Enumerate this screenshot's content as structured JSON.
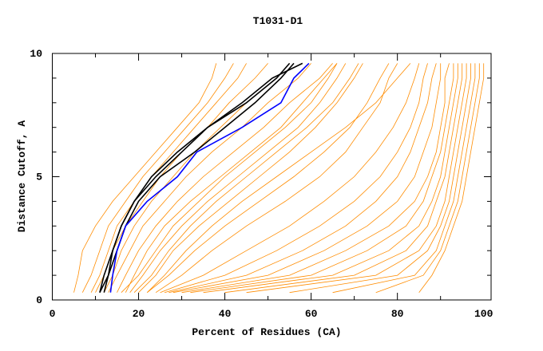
{
  "chart_data": {
    "type": "line",
    "title": "T1031-D1",
    "xlabel": "Percent of Residues (CA)",
    "ylabel": "Distance Cutoff, A",
    "xlim": [
      0,
      100
    ],
    "ylim": [
      0,
      10
    ],
    "xticks": [
      "0",
      "20",
      "40",
      "60",
      "80",
      "100"
    ],
    "yticks": [
      "0",
      "5",
      "10"
    ],
    "grid": false,
    "colors": {
      "others": "#ff8c00",
      "highlight_black": "#000000",
      "highlight_blue": "#0000ff"
    },
    "y": [
      0.3,
      1,
      2,
      3,
      4,
      5,
      6,
      7,
      8,
      9,
      9.6
    ],
    "series_orange": [
      [
        5,
        6,
        7,
        10,
        14,
        19,
        24,
        29,
        34,
        37,
        38
      ],
      [
        7,
        9,
        11,
        13,
        17,
        21,
        26,
        31,
        36,
        40,
        42
      ],
      [
        9,
        11,
        13,
        15,
        19,
        23,
        28,
        33,
        38,
        43,
        45
      ],
      [
        10,
        12,
        14,
        17,
        21,
        25,
        30,
        36,
        41,
        47,
        50
      ],
      [
        12,
        14,
        16,
        19,
        23,
        28,
        33,
        39,
        45,
        52,
        55
      ],
      [
        13,
        15,
        18,
        21,
        26,
        31,
        37,
        44,
        50,
        57,
        60
      ],
      [
        15,
        17,
        20,
        24,
        29,
        35,
        42,
        49,
        55,
        62,
        65
      ],
      [
        17,
        19,
        22,
        26,
        32,
        39,
        46,
        53,
        58,
        63,
        66
      ],
      [
        18,
        21,
        25,
        30,
        36,
        43,
        50,
        57,
        62,
        66,
        68
      ],
      [
        20,
        24,
        28,
        34,
        41,
        48,
        55,
        61,
        66,
        70,
        72
      ],
      [
        22,
        27,
        33,
        40,
        48,
        56,
        63,
        69,
        73,
        76,
        78
      ],
      [
        24,
        30,
        37,
        45,
        54,
        62,
        68,
        72,
        76,
        78,
        80
      ],
      [
        25,
        35,
        45,
        55,
        63,
        70,
        75,
        79,
        82,
        84,
        85
      ],
      [
        26,
        40,
        52,
        62,
        70,
        76,
        80,
        83,
        85,
        86,
        87
      ],
      [
        27,
        45,
        58,
        68,
        75,
        80,
        83,
        85,
        87,
        88,
        89
      ],
      [
        28,
        50,
        63,
        73,
        80,
        84,
        86,
        88,
        89,
        90,
        90
      ],
      [
        30,
        55,
        68,
        78,
        84,
        87,
        89,
        90,
        91,
        91,
        92
      ],
      [
        32,
        60,
        73,
        82,
        86,
        88,
        90,
        91,
        92,
        93,
        93
      ],
      [
        35,
        65,
        78,
        85,
        88,
        90,
        91,
        92,
        93,
        94,
        94
      ],
      [
        40,
        70,
        82,
        87,
        89,
        91,
        92,
        93,
        94,
        95,
        95
      ],
      [
        45,
        75,
        85,
        89,
        91,
        92,
        93,
        94,
        95,
        96,
        96
      ],
      [
        55,
        80,
        87,
        90,
        92,
        93,
        94,
        95,
        96,
        97,
        97
      ],
      [
        65,
        84,
        89,
        91,
        93,
        94,
        95,
        96,
        97,
        98,
        98
      ],
      [
        75,
        86,
        90,
        92,
        94,
        95,
        96,
        97,
        98,
        99,
        99
      ],
      [
        85,
        88,
        91,
        93,
        95,
        96,
        97,
        98,
        99,
        100,
        100
      ],
      [
        22,
        26,
        31,
        37,
        44,
        52,
        60,
        68,
        75,
        80,
        83
      ],
      [
        16,
        20,
        24,
        28,
        34,
        40,
        47,
        54,
        60,
        64,
        66
      ],
      [
        19,
        23,
        27,
        32,
        38,
        45,
        52,
        59,
        65,
        69,
        71
      ]
    ],
    "series_black": [
      [
        11,
        13,
        14,
        16,
        19,
        23,
        29,
        36,
        45,
        52,
        55
      ],
      [
        12,
        13,
        15,
        17,
        20,
        25,
        33,
        40,
        47,
        53,
        56
      ],
      [
        11,
        12,
        14,
        16,
        19,
        24,
        30,
        36,
        44,
        51,
        58
      ]
    ],
    "series_blue": [
      [
        13.5,
        14,
        15,
        17,
        22,
        29,
        33.5,
        44,
        53,
        56,
        59.5
      ]
    ]
  }
}
